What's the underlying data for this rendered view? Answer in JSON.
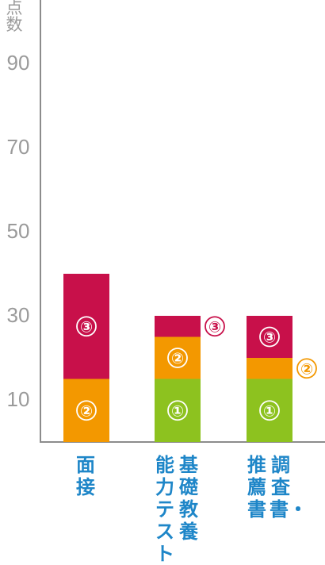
{
  "chart_data": {
    "type": "bar",
    "stacked": true,
    "ylabel": "点数",
    "yticks": [
      10,
      30,
      50,
      70,
      90
    ],
    "ylim": [
      0,
      105
    ],
    "grid": false,
    "categories": [
      {
        "lines": [
          "面接"
        ]
      },
      {
        "lines": [
          "基礎教養",
          "能力テスト"
        ]
      },
      {
        "lines": [
          "調査書・",
          "推薦書"
        ]
      }
    ],
    "series": [
      {
        "label": "①",
        "color": "#8dc21f",
        "values": [
          0,
          15,
          15
        ]
      },
      {
        "label": "②",
        "color": "#f39800",
        "values": [
          15,
          10,
          5
        ]
      },
      {
        "label": "③",
        "color": "#c8104a",
        "values": [
          25,
          5,
          10
        ]
      }
    ],
    "outside_labels": [
      {
        "category": 1,
        "series": 2
      },
      {
        "category": 2,
        "series": 1
      }
    ]
  }
}
